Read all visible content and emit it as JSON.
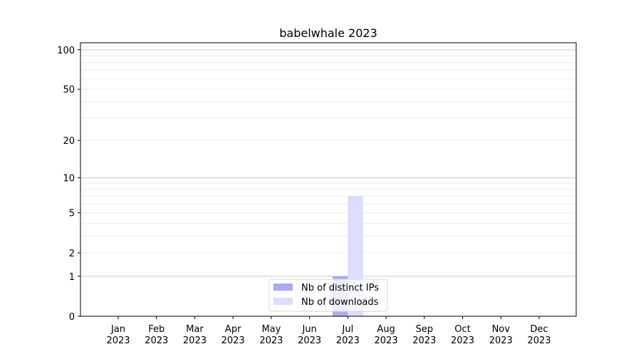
{
  "chart_data": {
    "type": "bar",
    "title": "babelwhale 2023",
    "xlabel": "",
    "ylabel": "",
    "yscale": "log(1+y)",
    "ylim": [
      0,
      113
    ],
    "yticks": [
      0,
      1,
      2,
      5,
      10,
      20,
      50,
      100
    ],
    "grid": true,
    "legend_position": "lower center",
    "categories": [
      "Jan\n2023",
      "Feb\n2023",
      "Mar\n2023",
      "Apr\n2023",
      "May\n2023",
      "Jun\n2023",
      "Jul\n2023",
      "Aug\n2023",
      "Sep\n2023",
      "Oct\n2023",
      "Nov\n2023",
      "Dec\n2023"
    ],
    "series": [
      {
        "name": "Nb of distinct IPs",
        "color": "#aaaaf8",
        "values": [
          0,
          0,
          0,
          0,
          0,
          0,
          1,
          0,
          0,
          0,
          0,
          0
        ]
      },
      {
        "name": "Nb of downloads",
        "color": "#dcdcfc",
        "values": [
          0,
          0,
          0,
          0,
          0,
          0,
          7,
          0,
          0,
          0,
          0,
          0
        ]
      }
    ]
  }
}
